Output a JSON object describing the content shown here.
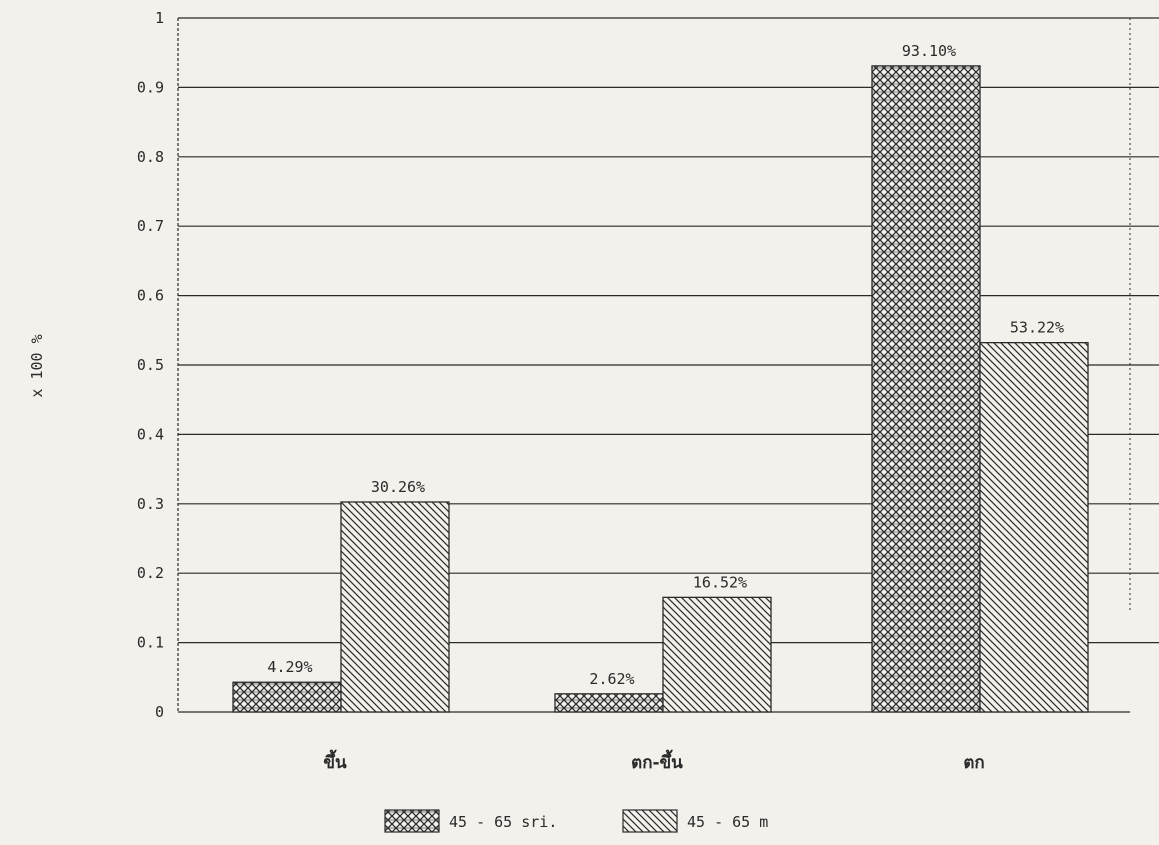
{
  "chart_data": {
    "type": "bar",
    "title": "",
    "xlabel": "",
    "ylabel": "x 100 %",
    "ylim": [
      0,
      1
    ],
    "yticks": [
      "0",
      "0.1",
      "0.2",
      "0.3",
      "0.4",
      "0.5",
      "0.6",
      "0.7",
      "0.8",
      "0.9",
      "1"
    ],
    "grid": "horizontal",
    "legend_position": "bottom",
    "categories": [
      "ขึ้น",
      "ตก-ขึ้น",
      "ตก"
    ],
    "series": [
      {
        "name": "45 - 65 sri.",
        "values": [
          0.0429,
          0.0262,
          0.931
        ],
        "data_labels": [
          "4.29%",
          "2.62%",
          "93.10%"
        ],
        "pattern": "crosshatch"
      },
      {
        "name": "45 - 65 m",
        "values": [
          0.3026,
          0.1652,
          0.5322
        ],
        "data_labels": [
          "30.26%",
          "16.52%",
          "53.22%"
        ],
        "pattern": "diagonal"
      }
    ],
    "colors": {
      "ink": "#2a2a2a",
      "background": "#f3f1ec"
    }
  }
}
